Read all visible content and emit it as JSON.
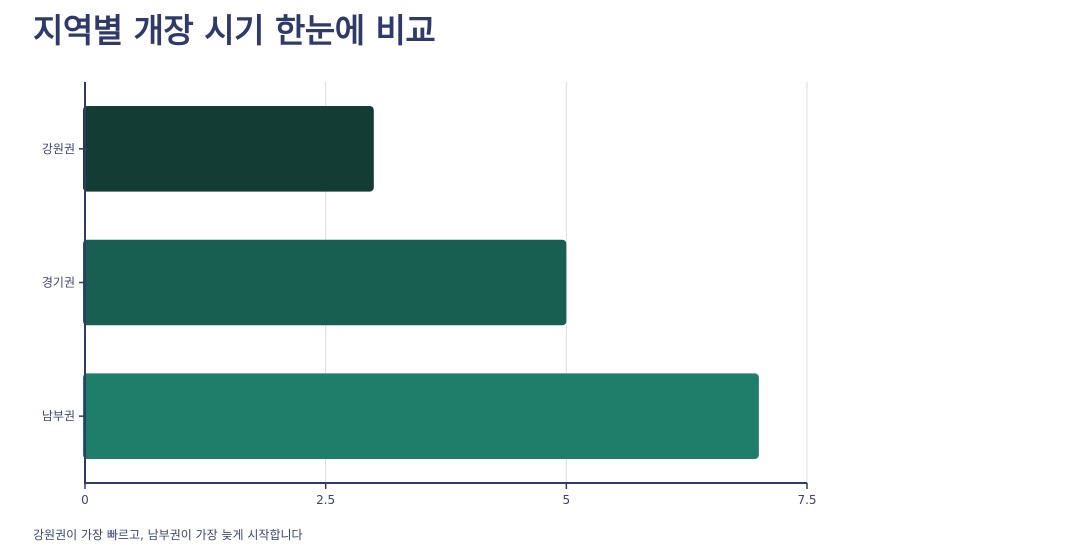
{
  "chart_data": {
    "type": "bar",
    "orientation": "horizontal",
    "title": "지역별 개장 시기 한눈에 비교",
    "categories": [
      "강원권",
      "경기권",
      "남부권"
    ],
    "values": [
      3,
      5,
      7
    ],
    "xlim": [
      0,
      7.5
    ],
    "xticks": [
      "0",
      "2.5",
      "5",
      "7.5"
    ],
    "grid": "vertical",
    "legend": "none",
    "colors": [
      "#133d34",
      "#185e51",
      "#1f7e69"
    ],
    "axis_color": "#2f3a6b",
    "caption": "강원권이 가장 빠르고, 남부권이 가장 늦게 시작합니다"
  }
}
